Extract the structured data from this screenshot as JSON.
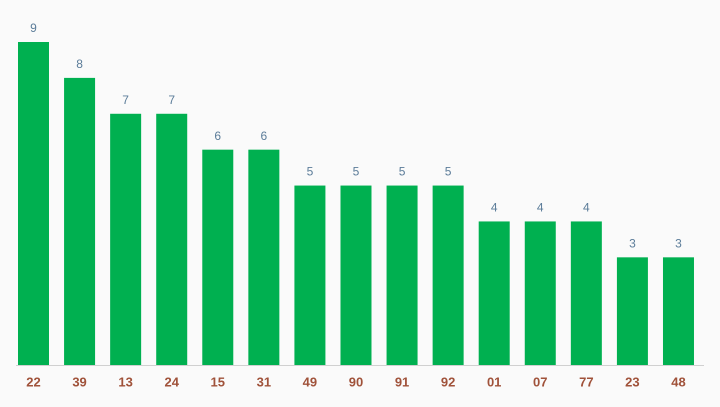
{
  "chart_data": {
    "type": "bar",
    "categories": [
      "22",
      "39",
      "13",
      "24",
      "15",
      "31",
      "49",
      "90",
      "91",
      "92",
      "01",
      "07",
      "77",
      "23",
      "48"
    ],
    "values": [
      9,
      8,
      7,
      7,
      6,
      6,
      5,
      5,
      5,
      5,
      4,
      4,
      4,
      3,
      3
    ],
    "color": "#00b050"
  }
}
